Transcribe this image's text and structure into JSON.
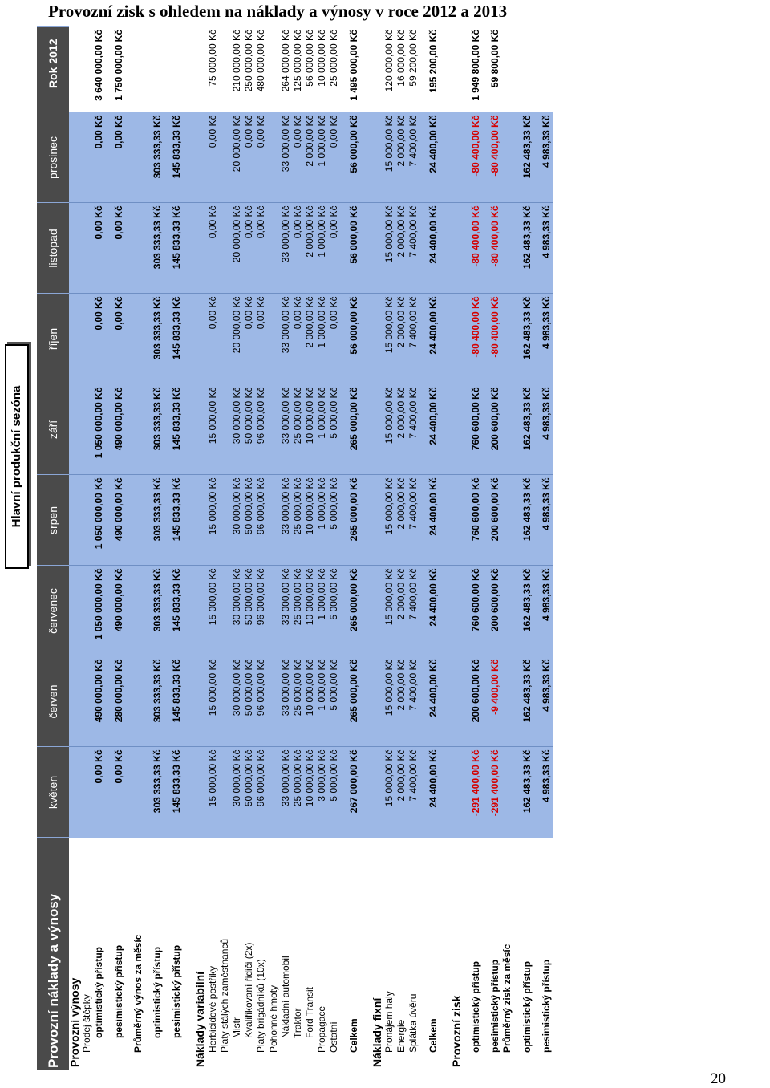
{
  "document": {
    "title": "Provozní zisk s ohledem na náklady a výnosy v roce 2012 a 2013",
    "page_number": "20",
    "section_caption": "Hlavní produkční sezóna"
  },
  "table": {
    "corner_label": "Provozní náklady a výnosy",
    "columns": [
      "květen",
      "červen",
      "červenec",
      "srpen",
      "září",
      "říjen",
      "listopad",
      "prosinec",
      "Rok 2012"
    ],
    "rows": [
      {
        "type": "section",
        "level": 0,
        "label": "Provozní výnosy"
      },
      {
        "type": "label",
        "level": 1,
        "label": "Prodej štěpky"
      },
      {
        "type": "data",
        "level": 2,
        "label": "optimistický přístup",
        "bold": true,
        "values": [
          "0,00 Kč",
          "490 000,00 Kč",
          "1 050 000,00 Kč",
          "1 050 000,00 Kč",
          "1 050 000,00 Kč",
          "0,00 Kč",
          "0,00 Kč",
          "0,00 Kč",
          "3 640 000,00 Kč"
        ]
      },
      {
        "type": "gap"
      },
      {
        "type": "data",
        "level": 2,
        "label": "pesimistický přístup",
        "bold": true,
        "values": [
          "0,00 Kč",
          "280 000,00 Kč",
          "490 000,00 Kč",
          "490 000,00 Kč",
          "490 000,00 Kč",
          "0,00 Kč",
          "0,00 Kč",
          "0,00 Kč",
          "1 750 000,00 Kč"
        ]
      },
      {
        "type": "gap"
      },
      {
        "type": "label",
        "level": 1,
        "label": "Průměrný výnos za měsíc",
        "bold": true
      },
      {
        "type": "gap"
      },
      {
        "type": "data",
        "level": 2,
        "label": "optimistický přístup",
        "bold": true,
        "values": [
          "303 333,33 Kč",
          "303 333,33 Kč",
          "303 333,33 Kč",
          "303 333,33 Kč",
          "303 333,33 Kč",
          "303 333,33 Kč",
          "303 333,33 Kč",
          "303 333,33 Kč",
          ""
        ]
      },
      {
        "type": "gap"
      },
      {
        "type": "data",
        "level": 2,
        "label": "pesimistický přístup",
        "bold": true,
        "values": [
          "145 833,33 Kč",
          "145 833,33 Kč",
          "145 833,33 Kč",
          "145 833,33 Kč",
          "145 833,33 Kč",
          "145 833,33 Kč",
          "145 833,33 Kč",
          "145 833,33 Kč",
          ""
        ]
      },
      {
        "type": "gap-lg"
      },
      {
        "type": "section",
        "level": 0,
        "label": "Náklady variabilní"
      },
      {
        "type": "data",
        "level": 1,
        "label": "Herbicidové postřiky",
        "values": [
          "15 000,00 Kč",
          "15 000,00 Kč",
          "15 000,00 Kč",
          "15 000,00 Kč",
          "15 000,00 Kč",
          "0,00 Kč",
          "0,00 Kč",
          "0,00 Kč",
          "75 000,00 Kč"
        ]
      },
      {
        "type": "label",
        "level": 1,
        "label": "Platy stálých zaměstnanců"
      },
      {
        "type": "data",
        "level": 2,
        "label": "Mistr",
        "values": [
          "30 000,00 Kč",
          "30 000,00 Kč",
          "30 000,00 Kč",
          "30 000,00 Kč",
          "30 000,00 Kč",
          "20 000,00 Kč",
          "20 000,00 Kč",
          "20 000,00 Kč",
          "210 000,00 Kč"
        ]
      },
      {
        "type": "data",
        "level": 2,
        "label": "Kvalifikovaní řidiči (2x)",
        "values": [
          "50 000,00 Kč",
          "50 000,00 Kč",
          "50 000,00 Kč",
          "50 000,00 Kč",
          "50 000,00 Kč",
          "0,00 Kč",
          "0,00 Kč",
          "0,00 Kč",
          "250 000,00 Kč"
        ]
      },
      {
        "type": "data",
        "level": 1,
        "label": "Platy brigádníků (10x)",
        "values": [
          "96 000,00 Kč",
          "96 000,00 Kč",
          "96 000,00 Kč",
          "96 000,00 Kč",
          "96 000,00 Kč",
          "0,00 Kč",
          "0,00 Kč",
          "0,00 Kč",
          "480 000,00 Kč"
        ]
      },
      {
        "type": "label",
        "level": 1,
        "label": "Pohonné hmoty"
      },
      {
        "type": "data",
        "level": 2,
        "label": "Nákladní automobil",
        "values": [
          "33 000,00 Kč",
          "33 000,00 Kč",
          "33 000,00 Kč",
          "33 000,00 Kč",
          "33 000,00 Kč",
          "33 000,00 Kč",
          "33 000,00 Kč",
          "33 000,00 Kč",
          "264 000,00 Kč"
        ]
      },
      {
        "type": "data",
        "level": 2,
        "label": "Traktor",
        "values": [
          "25 000,00 Kč",
          "25 000,00 Kč",
          "25 000,00 Kč",
          "25 000,00 Kč",
          "25 000,00 Kč",
          "0,00 Kč",
          "0,00 Kč",
          "0,00 Kč",
          "125 000,00 Kč"
        ]
      },
      {
        "type": "data",
        "level": 2,
        "label": "Ford Transit",
        "values": [
          "10 000,00 Kč",
          "10 000,00 Kč",
          "10 000,00 Kč",
          "10 000,00 Kč",
          "10 000,00 Kč",
          "2 000,00 Kč",
          "2 000,00 Kč",
          "2 000,00 Kč",
          "56 000,00 Kč"
        ]
      },
      {
        "type": "data",
        "level": 1,
        "label": "Propagace",
        "values": [
          "3 000,00 Kč",
          "1 000,00 Kč",
          "1 000,00 Kč",
          "1 000,00 Kč",
          "1 000,00 Kč",
          "1 000,00 Kč",
          "1 000,00 Kč",
          "1 000,00 Kč",
          "10 000,00 Kč"
        ]
      },
      {
        "type": "data",
        "level": 1,
        "label": "Ostatní",
        "values": [
          "5 000,00 Kč",
          "5 000,00 Kč",
          "5 000,00 Kč",
          "5 000,00 Kč",
          "5 000,00 Kč",
          "0,00 Kč",
          "0,00 Kč",
          "0,00 Kč",
          "25 000,00 Kč"
        ]
      },
      {
        "type": "gap"
      },
      {
        "type": "data",
        "level": 1,
        "label": "Celkem",
        "bold": true,
        "values": [
          "267 000,00 Kč",
          "265 000,00 Kč",
          "265 000,00 Kč",
          "265 000,00 Kč",
          "265 000,00 Kč",
          "56 000,00 Kč",
          "56 000,00 Kč",
          "56 000,00 Kč",
          "1 495 000,00 Kč"
        ]
      },
      {
        "type": "gap-lg"
      },
      {
        "type": "section",
        "level": 0,
        "label": "Náklady fixní"
      },
      {
        "type": "data",
        "level": 1,
        "label": "Pronájem haly",
        "values": [
          "15 000,00 Kč",
          "15 000,00 Kč",
          "15 000,00 Kč",
          "15 000,00 Kč",
          "15 000,00 Kč",
          "15 000,00 Kč",
          "15 000,00 Kč",
          "15 000,00 Kč",
          "120 000,00 Kč"
        ]
      },
      {
        "type": "data",
        "level": 1,
        "label": "Energie",
        "values": [
          "2 000,00 Kč",
          "2 000,00 Kč",
          "2 000,00 Kč",
          "2 000,00 Kč",
          "2 000,00 Kč",
          "2 000,00 Kč",
          "2 000,00 Kč",
          "2 000,00 Kč",
          "16 000,00 Kč"
        ]
      },
      {
        "type": "data",
        "level": 1,
        "label": "Splátka úvěru",
        "values": [
          "7 400,00 Kč",
          "7 400,00 Kč",
          "7 400,00 Kč",
          "7 400,00 Kč",
          "7 400,00 Kč",
          "7 400,00 Kč",
          "7 400,00 Kč",
          "7 400,00 Kč",
          "59 200,00 Kč"
        ]
      },
      {
        "type": "gap"
      },
      {
        "type": "data",
        "level": 1,
        "label": "Celkem",
        "bold": true,
        "values": [
          "24 400,00 Kč",
          "24 400,00 Kč",
          "24 400,00 Kč",
          "24 400,00 Kč",
          "24 400,00 Kč",
          "24 400,00 Kč",
          "24 400,00 Kč",
          "24 400,00 Kč",
          "195 200,00 Kč"
        ]
      },
      {
        "type": "gap-lg"
      },
      {
        "type": "section",
        "level": 0,
        "label": "Provozní zisk"
      },
      {
        "type": "gap"
      },
      {
        "type": "data",
        "level": 1,
        "label": "optimistický přístup",
        "bold": true,
        "values": [
          "-291 400,00 Kč",
          "200 600,00 Kč",
          "760 600,00 Kč",
          "760 600,00 Kč",
          "760 600,00 Kč",
          "-80 400,00 Kč",
          "-80 400,00 Kč",
          "-80 400,00 Kč",
          "1 949 800,00 Kč"
        ]
      },
      {
        "type": "gap"
      },
      {
        "type": "data",
        "level": 1,
        "label": "pesimistický přístup",
        "bold": true,
        "values": [
          "-291 400,00 Kč",
          "-9 400,00 Kč",
          "200 600,00 Kč",
          "200 600,00 Kč",
          "200 600,00 Kč",
          "-80 400,00 Kč",
          "-80 400,00 Kč",
          "-80 400,00 Kč",
          "59 800,00 Kč"
        ]
      },
      {
        "type": "label",
        "level": 1,
        "label": "Průměrný zisk za měsíc",
        "bold": true
      },
      {
        "type": "gap"
      },
      {
        "type": "data",
        "level": 1,
        "label": "optimistický přístup",
        "bold": true,
        "values": [
          "162 483,33 Kč",
          "162 483,33 Kč",
          "162 483,33 Kč",
          "162 483,33 Kč",
          "162 483,33 Kč",
          "162 483,33 Kč",
          "162 483,33 Kč",
          "162 483,33 Kč",
          ""
        ]
      },
      {
        "type": "gap"
      },
      {
        "type": "data",
        "level": 1,
        "label": "pesimistický přístup",
        "bold": true,
        "values": [
          "4 983,33 Kč",
          "4 983,33 Kč",
          "4 983,33 Kč",
          "4 983,33 Kč",
          "4 983,33 Kč",
          "4 983,33 Kč",
          "4 983,33 Kč",
          "4 983,33 Kč",
          ""
        ]
      }
    ]
  }
}
